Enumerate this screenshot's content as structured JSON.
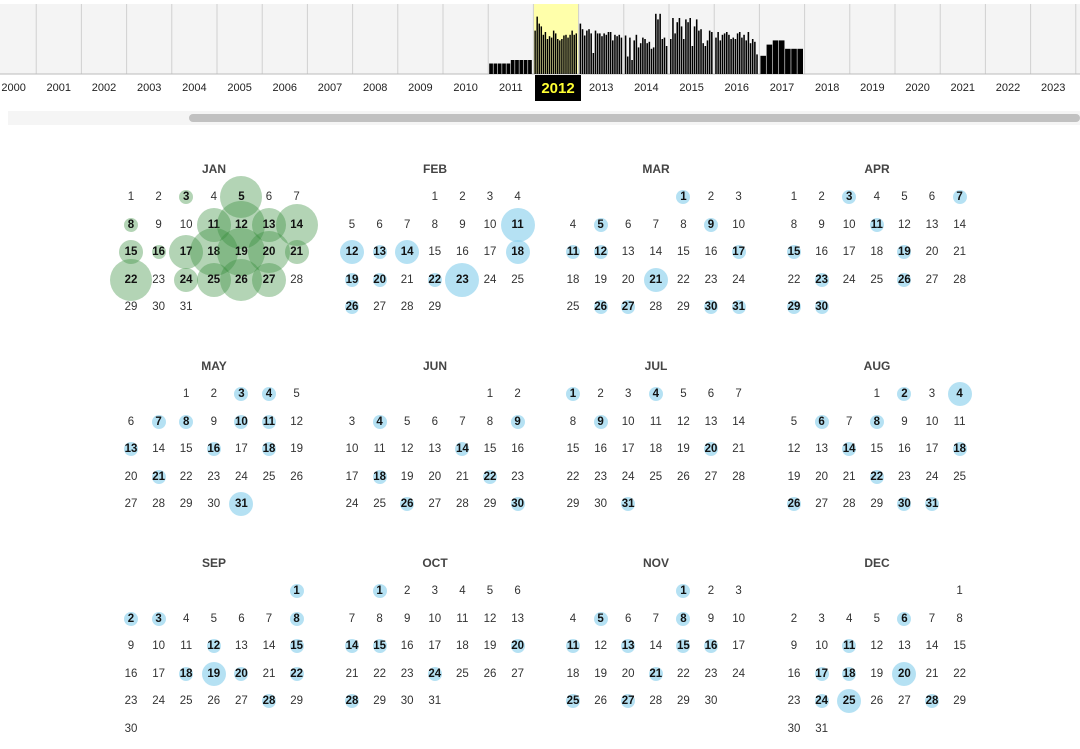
{
  "timeline": {
    "years": [
      "2000",
      "2001",
      "2002",
      "2003",
      "2004",
      "2005",
      "2006",
      "2007",
      "2008",
      "2009",
      "2010",
      "2011",
      "2012",
      "2013",
      "2014",
      "2015",
      "2016",
      "2017",
      "2018",
      "2019",
      "2020",
      "2021",
      "2022",
      "2023"
    ],
    "selected_year": "2012",
    "selected_label_color": "#ffff33",
    "selected_band_color": "#ffffaa",
    "bar_color": "#000000",
    "activity_by_year": {
      "2011": [
        0.15,
        0.15,
        0.15,
        0.15,
        0.15,
        0.2,
        0.2,
        0.2,
        0.2,
        0.2
      ],
      "2012": [
        0.62,
        0.82,
        0.72,
        0.68,
        0.56,
        0.6,
        0.5,
        0.54,
        0.52,
        0.62,
        0.58,
        0.5,
        0.48,
        0.5,
        0.55,
        0.56,
        0.52,
        0.56,
        0.62,
        0.56,
        0.58
      ],
      "2013": [
        0.72,
        0.64,
        0.55,
        0.62,
        0.64,
        0.58,
        0.3,
        0.62,
        0.58,
        0.58,
        0.54,
        0.58,
        0.56,
        0.6,
        0.6,
        0.48,
        0.56,
        0.54,
        0.56,
        0.52
      ],
      "2014": [
        0.55,
        0.25,
        0.52,
        0.2,
        0.48,
        0.56,
        0.38,
        0.44,
        0.52,
        0.5,
        0.44,
        0.46,
        0.36,
        0.38,
        0.86,
        0.78,
        0.86,
        0.5,
        0.52,
        0.4
      ],
      "2015": [
        0.5,
        0.8,
        0.58,
        0.74,
        0.8,
        0.68,
        0.5,
        0.78,
        0.74,
        0.8,
        0.4,
        0.68,
        0.78,
        0.62,
        0.64,
        0.44,
        0.4,
        0.48,
        0.62,
        0.6
      ],
      "2016": [
        0.52,
        0.6,
        0.48,
        0.56,
        0.58,
        0.6,
        0.56,
        0.5,
        0.52,
        0.5,
        0.58,
        0.6,
        0.52,
        0.56,
        0.48,
        0.6,
        0.44,
        0.5,
        0.46,
        0.28
      ],
      "2017": [
        0.26,
        0.42,
        0.48,
        0.48,
        0.36,
        0.36,
        0.36
      ]
    }
  },
  "calendar": {
    "year": 2012,
    "colors": {
      "blue_bubble": "#87ceeb",
      "green_bubble": "#388e3c"
    },
    "months": [
      {
        "name": "JAN",
        "first_weekday": 0,
        "days": 31,
        "color": "green",
        "events": {
          "3": 1,
          "5": 4,
          "8": 1,
          "11": 3,
          "12": 5,
          "13": 3,
          "14": 4,
          "15": 2,
          "16": 1,
          "17": 3,
          "18": 5,
          "19": 5,
          "20": 4,
          "21": 2,
          "22": 4,
          "24": 2,
          "25": 3,
          "26": 4,
          "27": 3
        }
      },
      {
        "name": "FEB",
        "first_weekday": 3,
        "days": 29,
        "color": "blue",
        "events": {
          "11": 3,
          "12": 2,
          "13": 1,
          "14": 2,
          "18": 2,
          "19": 1,
          "20": 1,
          "22": 1,
          "23": 3,
          "26": 1
        }
      },
      {
        "name": "MAR",
        "first_weekday": 4,
        "days": 31,
        "color": "blue",
        "events": {
          "1": 1,
          "5": 1,
          "9": 1,
          "11": 1,
          "12": 1,
          "17": 1,
          "21": 2,
          "26": 1,
          "27": 1,
          "30": 1,
          "31": 1
        }
      },
      {
        "name": "APR",
        "first_weekday": 0,
        "days": 30,
        "color": "blue",
        "events": {
          "3": 1,
          "7": 1,
          "11": 1,
          "15": 1,
          "19": 1,
          "23": 1,
          "26": 1,
          "29": 1,
          "30": 1
        }
      },
      {
        "name": "MAY",
        "first_weekday": 2,
        "days": 31,
        "color": "blue",
        "events": {
          "3": 1,
          "4": 1,
          "7": 1,
          "8": 1,
          "10": 1,
          "11": 1,
          "13": 1,
          "16": 1,
          "18": 1,
          "21": 1,
          "31": 2
        }
      },
      {
        "name": "JUN",
        "first_weekday": 5,
        "days": 30,
        "color": "blue",
        "events": {
          "4": 1,
          "9": 1,
          "14": 1,
          "18": 1,
          "22": 1,
          "26": 1,
          "30": 1
        }
      },
      {
        "name": "JUL",
        "first_weekday": 0,
        "days": 31,
        "color": "blue",
        "events": {
          "1": 1,
          "4": 1,
          "9": 1,
          "20": 1,
          "31": 1
        }
      },
      {
        "name": "AUG",
        "first_weekday": 3,
        "days": 31,
        "color": "blue",
        "events": {
          "2": 1,
          "4": 2,
          "6": 1,
          "8": 1,
          "14": 1,
          "18": 1,
          "22": 1,
          "26": 1,
          "30": 1,
          "31": 1
        }
      },
      {
        "name": "SEP",
        "first_weekday": 6,
        "days": 30,
        "color": "blue",
        "events": {
          "1": 1,
          "2": 1,
          "3": 1,
          "8": 1,
          "12": 1,
          "15": 1,
          "18": 1,
          "19": 2,
          "20": 1,
          "22": 1,
          "28": 1
        }
      },
      {
        "name": "OCT",
        "first_weekday": 1,
        "days": 31,
        "color": "blue",
        "events": {
          "1": 1,
          "14": 1,
          "15": 1,
          "20": 1,
          "24": 1,
          "28": 1
        }
      },
      {
        "name": "NOV",
        "first_weekday": 4,
        "days": 30,
        "color": "blue",
        "events": {
          "1": 1,
          "5": 1,
          "8": 1,
          "11": 1,
          "13": 1,
          "15": 1,
          "16": 1,
          "21": 1,
          "25": 1,
          "27": 1
        }
      },
      {
        "name": "DEC",
        "first_weekday": 6,
        "days": 31,
        "color": "blue",
        "events": {
          "6": 1,
          "11": 1,
          "17": 1,
          "18": 1,
          "20": 2,
          "24": 1,
          "25": 2,
          "28": 1
        }
      }
    ]
  }
}
